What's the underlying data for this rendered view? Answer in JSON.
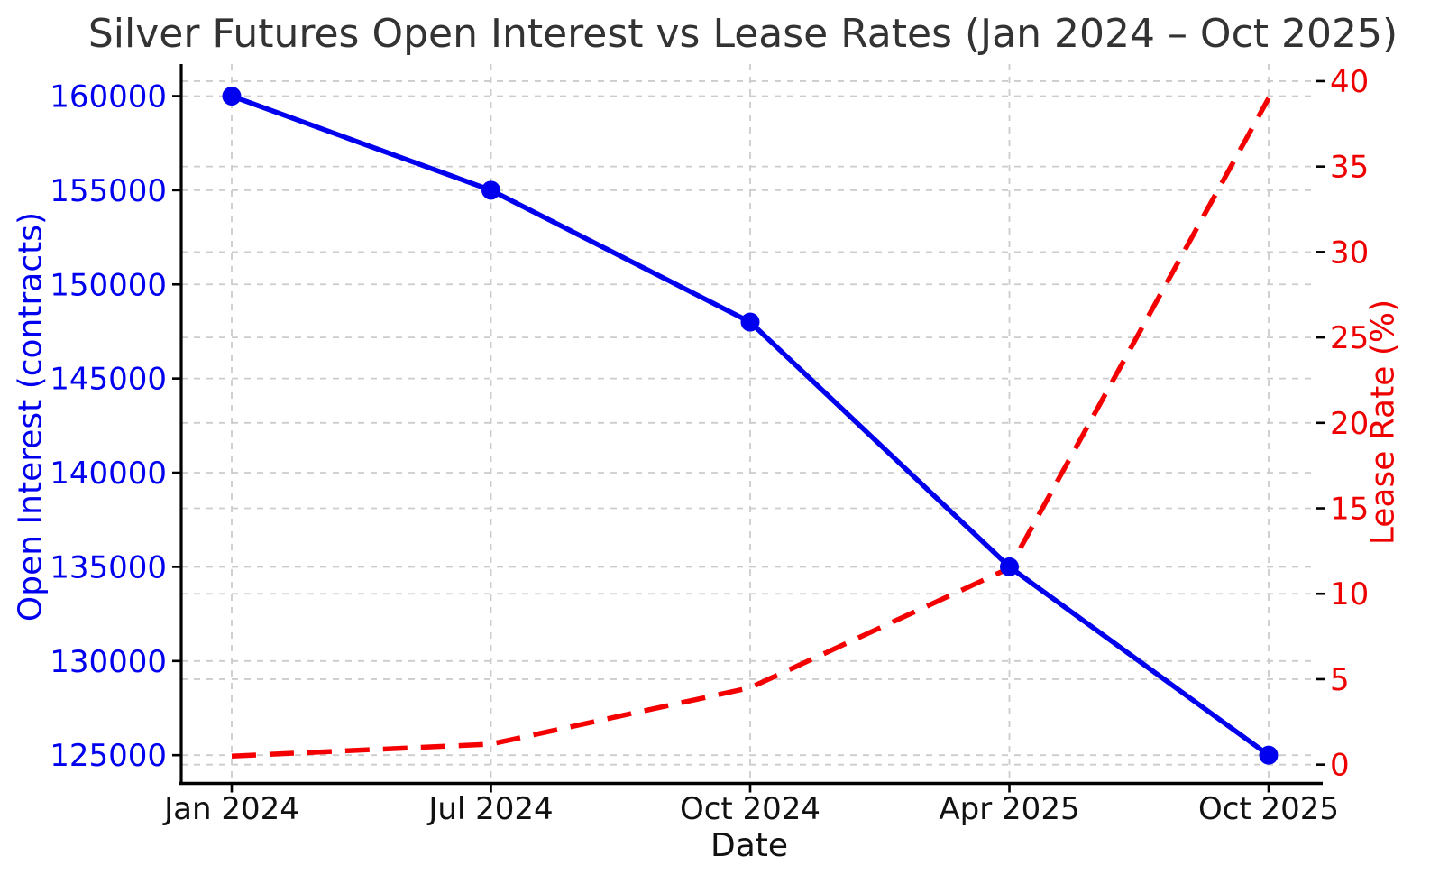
{
  "chart_data": {
    "type": "line",
    "title": "Silver Futures Open Interest vs Lease Rates (Jan 2024 – Oct 2025)",
    "xlabel": "Date",
    "categories": [
      "Jan 2024",
      "Jul 2024",
      "Oct 2024",
      "Apr 2025",
      "Oct 2025"
    ],
    "series": [
      {
        "name": "Open Interest",
        "axis": "left",
        "color": "#0000ee",
        "line_style": "solid",
        "marker": "circle",
        "values": [
          160000,
          155000,
          148000,
          135000,
          125000
        ]
      },
      {
        "name": "Lease Rate",
        "axis": "right",
        "color": "#f50000",
        "line_style": "dashed",
        "marker": "none",
        "values": [
          0.5,
          1.2,
          4.5,
          11.5,
          39.0
        ]
      }
    ],
    "left_axis": {
      "label": "Open Interest (contracts)",
      "color": "#0000ee",
      "ticks": [
        125000,
        130000,
        135000,
        140000,
        145000,
        150000,
        155000,
        160000
      ],
      "range": [
        123500,
        161700
      ]
    },
    "right_axis": {
      "label": "Lease Rate (%)",
      "color": "#ee0000",
      "ticks": [
        0,
        5,
        10,
        15,
        20,
        25,
        30,
        35,
        40
      ],
      "range": [
        -1.1,
        41.0
      ]
    },
    "grid": {
      "show": true,
      "style": "dashed",
      "color": "#cccccc"
    }
  }
}
